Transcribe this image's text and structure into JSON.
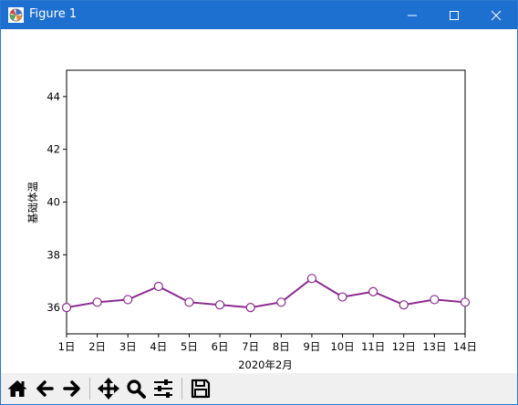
{
  "window": {
    "title": "Figure 1",
    "controls": {
      "minimize": "—",
      "maximize": "☐",
      "close": "✕"
    }
  },
  "toolbar": {
    "buttons": [
      {
        "name": "home-button",
        "icon": "home-icon"
      },
      {
        "name": "back-button",
        "icon": "arrow-left-icon"
      },
      {
        "name": "forward-button",
        "icon": "arrow-right-icon"
      },
      {
        "name": "pan-button",
        "icon": "move-icon"
      },
      {
        "name": "zoom-button",
        "icon": "magnifier-icon"
      },
      {
        "name": "configure-subplots-button",
        "icon": "sliders-icon"
      },
      {
        "name": "save-button",
        "icon": "floppy-disk-icon"
      }
    ]
  },
  "chart_data": {
    "type": "line",
    "title": "",
    "xlabel": "2020年2月",
    "ylabel": "基础体温",
    "categories": [
      "1日",
      "2日",
      "3日",
      "4日",
      "5日",
      "6日",
      "7日",
      "8日",
      "9日",
      "10日",
      "11日",
      "12日",
      "13日",
      "14日"
    ],
    "series": [
      {
        "values": [
          36.0,
          36.2,
          36.3,
          36.8,
          36.2,
          36.1,
          36.0,
          36.2,
          37.1,
          36.4,
          36.6,
          36.1,
          36.3,
          36.2
        ],
        "line_color": "#8b2a8f",
        "marker": "circle",
        "marker_face": "#ffffff",
        "marker_edge": "#8b2a8f"
      }
    ],
    "ylim": [
      35,
      45
    ],
    "yticks": [
      36,
      38,
      40,
      42,
      44
    ],
    "grid": false,
    "legend": "none"
  }
}
